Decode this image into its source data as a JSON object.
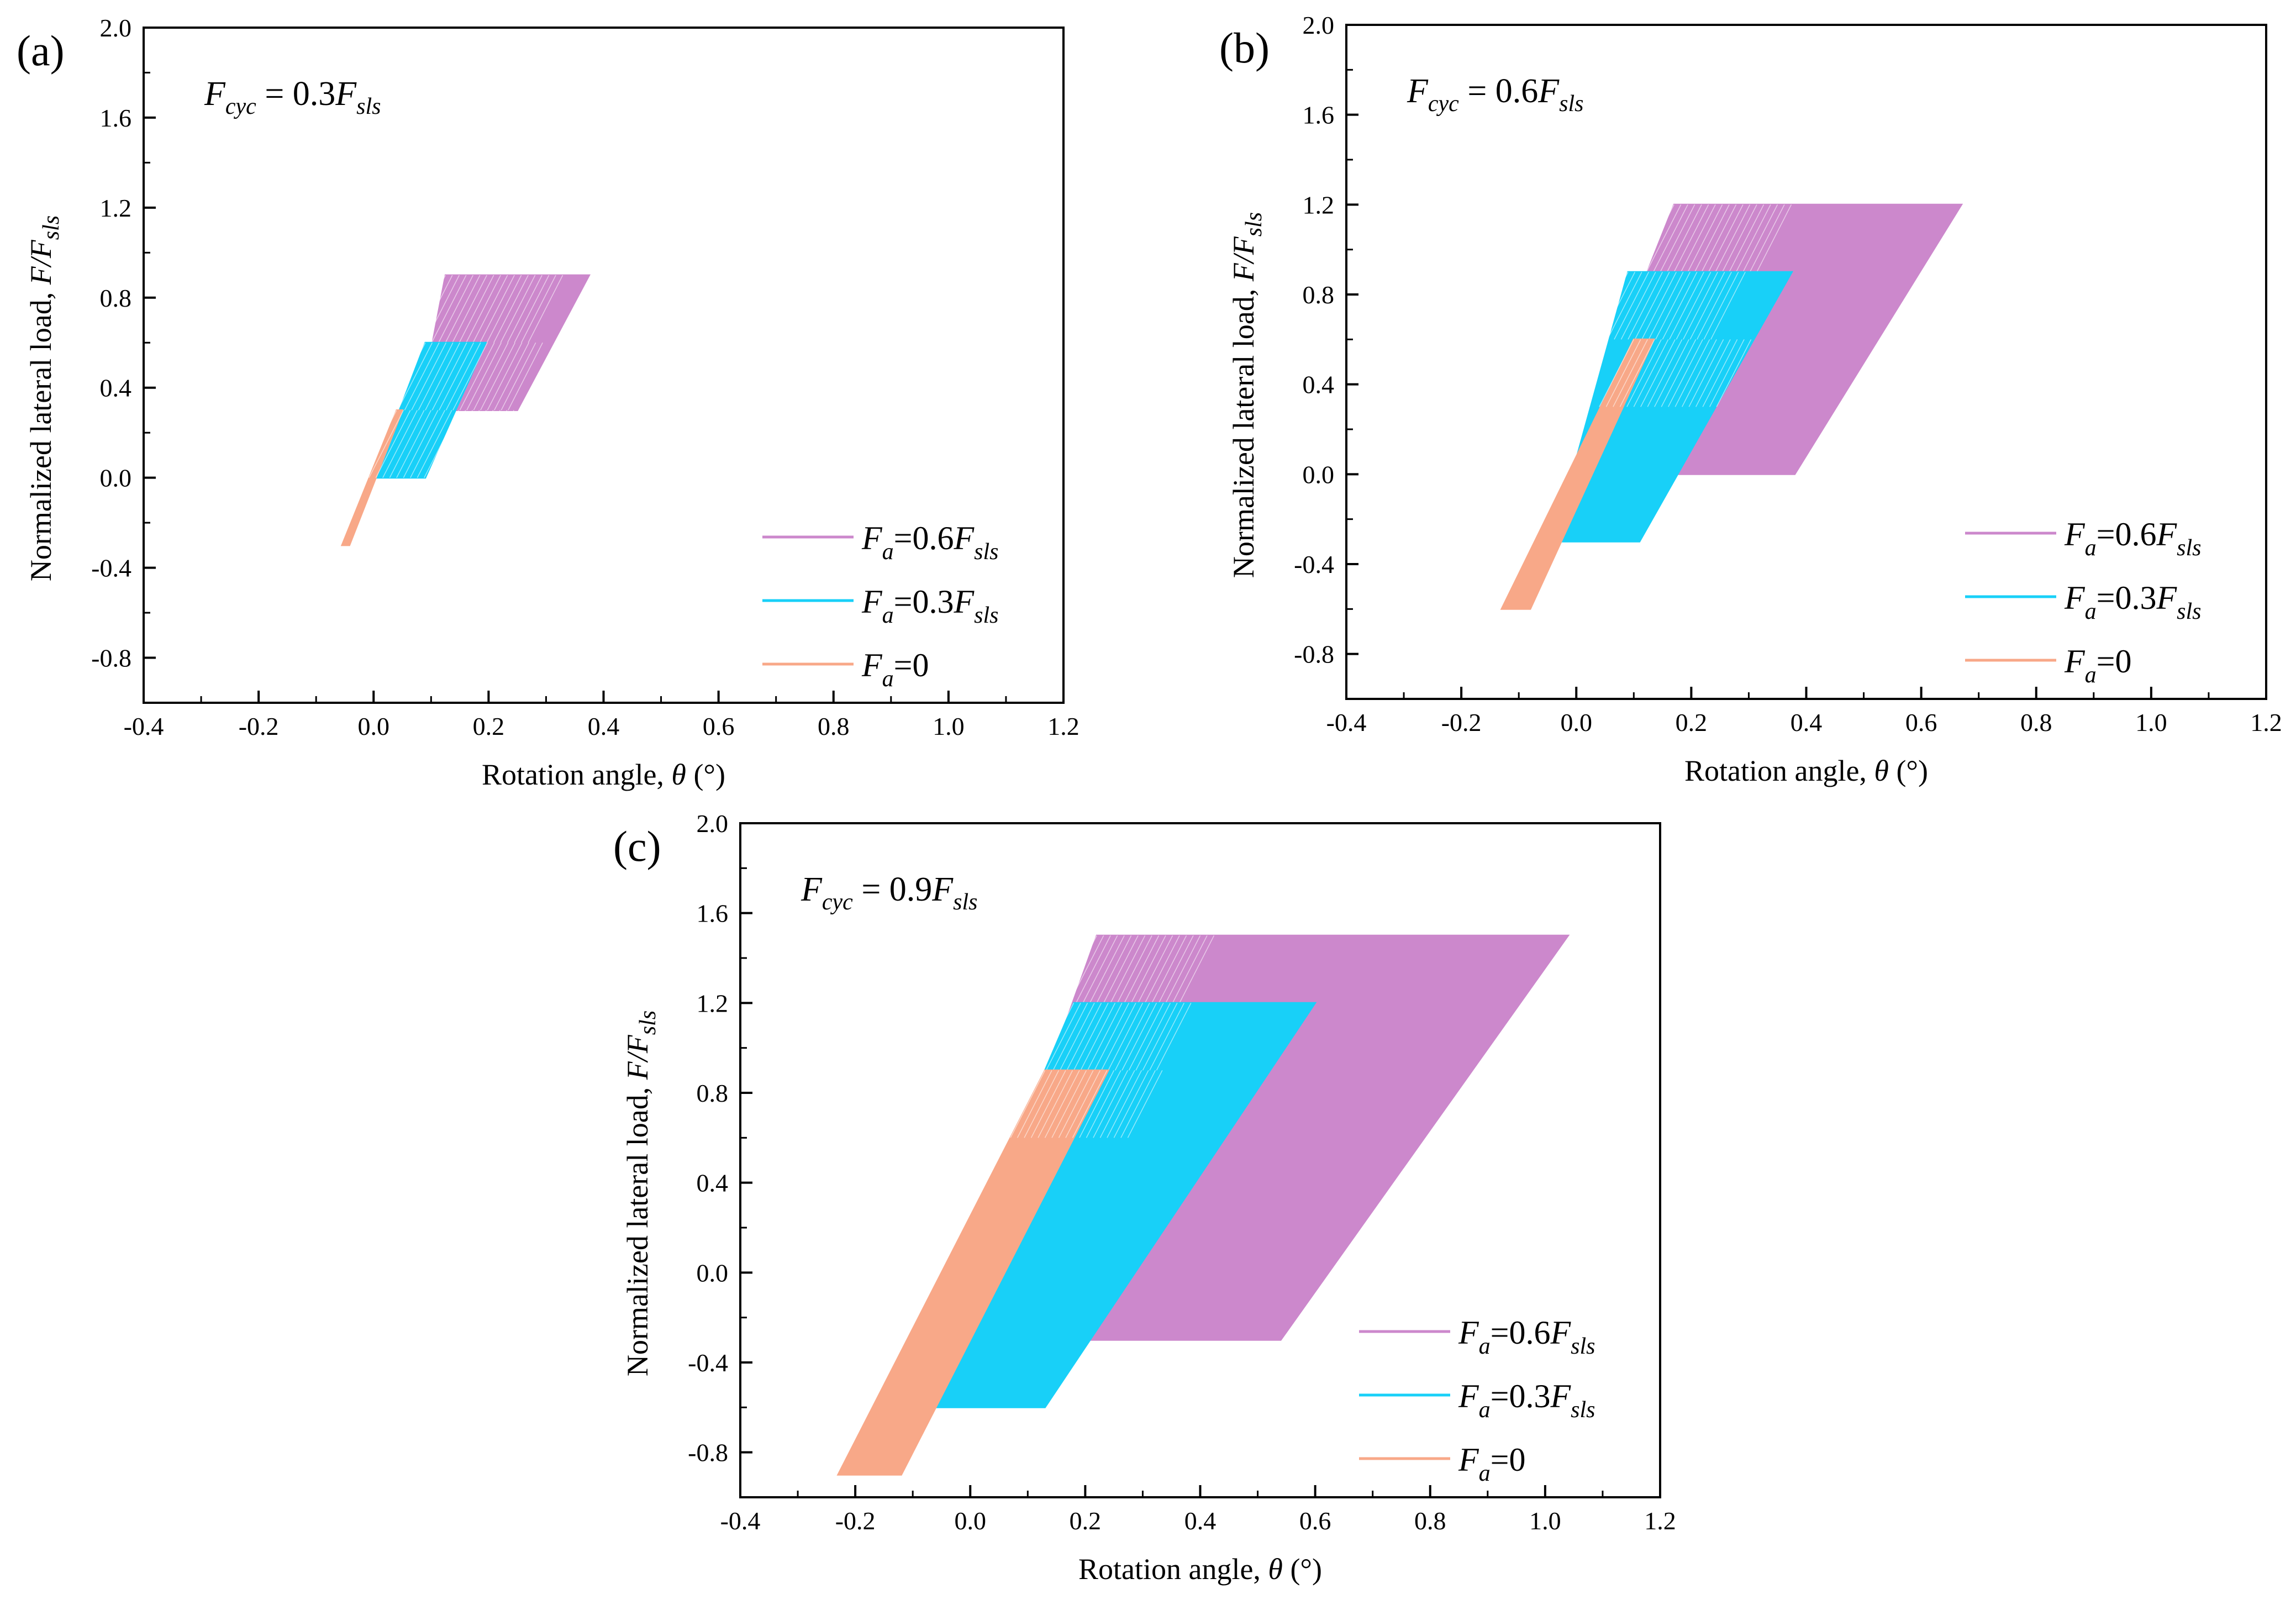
{
  "chart_data": [
    {
      "type": "line",
      "panel_label": "(a)",
      "title": {
        "F": "F",
        "cyc": "cyc",
        "eq": " = 0.3",
        "F2": "F",
        "sls": "sls"
      },
      "xlabel": {
        "text": "Rotation angle, ",
        "theta": "θ",
        "unit": " (°)"
      },
      "ylabel": {
        "text": "Normalized lateral load, ",
        "F": "F",
        "slash": "/F",
        "sls": "sls"
      },
      "xlim": [
        -0.4,
        1.2
      ],
      "ylim": [
        -1.0,
        2.0
      ],
      "xticks": [
        "-0.4",
        "-0.2",
        "0.0",
        "0.2",
        "0.4",
        "0.6",
        "0.8",
        "1.0",
        "1.2"
      ],
      "yticks": [
        "-0.8",
        "-0.4",
        "0.0",
        "0.4",
        "0.8",
        "1.2",
        "1.6",
        "2.0"
      ],
      "legend": [
        {
          "F": "F",
          "a": "a",
          "eq": "=0.6",
          "F2": "F",
          "sls": "sls"
        },
        {
          "F": "F",
          "a": "a",
          "eq": "=0.3",
          "F2": "F",
          "sls": "sls"
        },
        {
          "F": "F",
          "a": "a",
          "eq": "=0",
          "F2": "",
          "sls": ""
        }
      ],
      "series": [
        {
          "name": "Fa=0.6Fsls",
          "color": "#cc88cc",
          "polygon": [
            [
              0.08,
              0.3
            ],
            [
              0.125,
              0.9
            ],
            [
              0.375,
              0.9
            ],
            [
              0.25,
              0.3
            ]
          ]
        },
        {
          "name": "Fa=0.3Fsls",
          "color": "#18d0f8",
          "polygon": [
            [
              0.0,
              0.0
            ],
            [
              0.09,
              0.6
            ],
            [
              0.195,
              0.6
            ],
            [
              0.09,
              0.0
            ]
          ]
        },
        {
          "name": "Fa=0",
          "color": "#f8a888",
          "polygon": [
            [
              -0.055,
              -0.3
            ],
            [
              0.04,
              0.3
            ],
            [
              0.05,
              0.3
            ],
            [
              -0.042,
              -0.3
            ]
          ]
        }
      ]
    },
    {
      "type": "line",
      "panel_label": "(b)",
      "title": {
        "F": "F",
        "cyc": "cyc",
        "eq": " = 0.6",
        "F2": "F",
        "sls": "sls"
      },
      "xlabel": {
        "text": "Rotation angle, ",
        "theta": "θ",
        "unit": " (°)"
      },
      "ylabel": {
        "text": "Normalized lateral load, ",
        "F": "F",
        "slash": "/F",
        "sls": "sls"
      },
      "xlim": [
        -0.4,
        1.2
      ],
      "ylim": [
        -1.0,
        2.0
      ],
      "xticks": [
        "-0.4",
        "-0.2",
        "0.0",
        "0.2",
        "0.4",
        "0.6",
        "0.8",
        "1.0",
        "1.2"
      ],
      "yticks": [
        "-0.8",
        "-0.4",
        "0.0",
        "0.4",
        "0.8",
        "1.2",
        "1.6",
        "2.0"
      ],
      "legend": [
        {
          "F": "F",
          "a": "a",
          "eq": "=0.6",
          "F2": "F",
          "sls": "sls"
        },
        {
          "F": "F",
          "a": "a",
          "eq": "=0.3",
          "F2": "F",
          "sls": "sls"
        },
        {
          "F": "F",
          "a": "a",
          "eq": "=0",
          "F2": "",
          "sls": ""
        }
      ],
      "series": [
        {
          "name": "Fa=0.6Fsls",
          "color": "#cc88cc",
          "polygon": [
            [
              0.03,
              0.3
            ],
            [
              0.17,
              1.2
            ],
            [
              0.67,
              1.2
            ],
            [
              0.38,
              0.0
            ],
            [
              0.17,
              0.0
            ]
          ]
        },
        {
          "name": "Fa=0.3Fsls",
          "color": "#18d0f8",
          "polygon": [
            [
              -0.04,
              -0.3
            ],
            [
              0.09,
              0.9
            ],
            [
              0.375,
              0.9
            ],
            [
              0.11,
              -0.3
            ]
          ]
        },
        {
          "name": "Fa=0",
          "color": "#f8a888",
          "polygon": [
            [
              -0.13,
              -0.6
            ],
            [
              0.1,
              0.6
            ],
            [
              0.135,
              0.6
            ],
            [
              -0.08,
              -0.6
            ]
          ]
        }
      ]
    },
    {
      "type": "line",
      "panel_label": "(c)",
      "title": {
        "F": "F",
        "cyc": "cyc",
        "eq": " = 0.9",
        "F2": "F",
        "sls": "sls"
      },
      "xlabel": {
        "text": "Rotation angle, ",
        "theta": "θ",
        "unit": " (°)"
      },
      "ylabel": {
        "text": "Normalized lateral load, ",
        "F": "F",
        "slash": "/F",
        "sls": "sls"
      },
      "xlim": [
        -0.4,
        1.2
      ],
      "ylim": [
        -1.0,
        2.0
      ],
      "xticks": [
        "-0.4",
        "-0.2",
        "0.0",
        "0.2",
        "0.4",
        "0.6",
        "0.8",
        "1.0",
        "1.2"
      ],
      "yticks": [
        "-0.8",
        "-0.4",
        "0.0",
        "0.4",
        "0.8",
        "1.2",
        "1.6",
        "2.0"
      ],
      "legend": [
        {
          "F": "F",
          "a": "a",
          "eq": "=0.6",
          "F2": "F",
          "sls": "sls"
        },
        {
          "F": "F",
          "a": "a",
          "eq": "=0.3",
          "F2": "F",
          "sls": "sls"
        },
        {
          "F": "F",
          "a": "a",
          "eq": "=0",
          "F2": "",
          "sls": ""
        }
      ],
      "series": [
        {
          "name": "Fa=0.6Fsls",
          "color": "#cc88cc",
          "polygon": [
            [
              0.0,
              0.0
            ],
            [
              0.15,
              1.0
            ],
            [
              0.22,
              1.5
            ],
            [
              1.04,
              1.5
            ],
            [
              0.54,
              -0.3
            ],
            [
              0.2,
              -0.3
            ]
          ]
        },
        {
          "name": "Fa=0.3Fsls",
          "color": "#18d0f8",
          "polygon": [
            [
              -0.07,
              -0.6
            ],
            [
              0.13,
              0.9
            ],
            [
              0.18,
              1.2
            ],
            [
              0.6,
              1.2
            ],
            [
              0.13,
              -0.6
            ]
          ]
        },
        {
          "name": "Fa=0",
          "color": "#f8a888",
          "polygon": [
            [
              -0.23,
              -0.9
            ],
            [
              0.13,
              0.9
            ],
            [
              0.24,
              0.9
            ],
            [
              -0.12,
              -0.9
            ]
          ]
        }
      ]
    }
  ]
}
